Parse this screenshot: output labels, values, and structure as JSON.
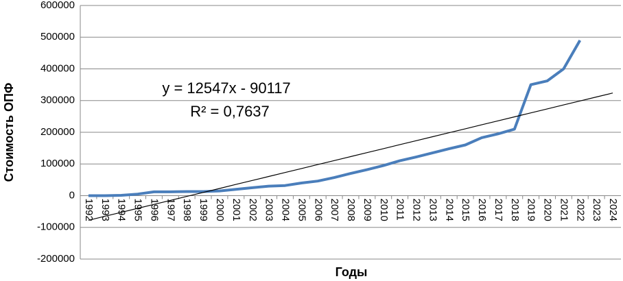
{
  "chart_data": {
    "type": "line",
    "x_label": "Годы",
    "y_label": "Стоимость ОПФ",
    "annotations": [
      "y = 12547x - 90117",
      "R² = 0,7637"
    ],
    "categories": [
      "1992",
      "1993",
      "1994",
      "1995",
      "1996",
      "1997",
      "1998",
      "1999",
      "2000",
      "2001",
      "2002",
      "2003",
      "2004",
      "2005",
      "2006",
      "2007",
      "2008",
      "2009",
      "2010",
      "2011",
      "2012",
      "2013",
      "2014",
      "2015",
      "2016",
      "2017",
      "2018",
      "2019",
      "2020",
      "2021",
      "2022",
      "2023",
      "2024"
    ],
    "series": [
      {
        "color": "#4a7ebb",
        "values": [
          0,
          0,
          1000,
          5000,
          12000,
          12000,
          13000,
          13000,
          15000,
          20000,
          25000,
          30000,
          32000,
          40000,
          46000,
          57000,
          70000,
          82000,
          95000,
          110000,
          122000,
          135000,
          148000,
          160000,
          183000,
          195000,
          210000,
          350000,
          362000,
          400000,
          490000,
          null,
          null
        ]
      },
      {
        "color": "#000000",
        "values": [
          -77570,
          -65023,
          -52476,
          -39929,
          -27382,
          -14835,
          -2288,
          10259,
          22806,
          35353,
          47900,
          60447,
          72994,
          85541,
          98088,
          110635,
          123182,
          135729,
          148276,
          160823,
          173370,
          185917,
          198464,
          211011,
          223558,
          236105,
          248652,
          261199,
          273746,
          286293,
          298840,
          311387,
          323934
        ]
      }
    ],
    "ylim": [
      -200000,
      600000
    ],
    "yticks": [
      -200000,
      -100000,
      0,
      100000,
      200000,
      300000,
      400000,
      500000,
      600000
    ],
    "grid": true
  }
}
